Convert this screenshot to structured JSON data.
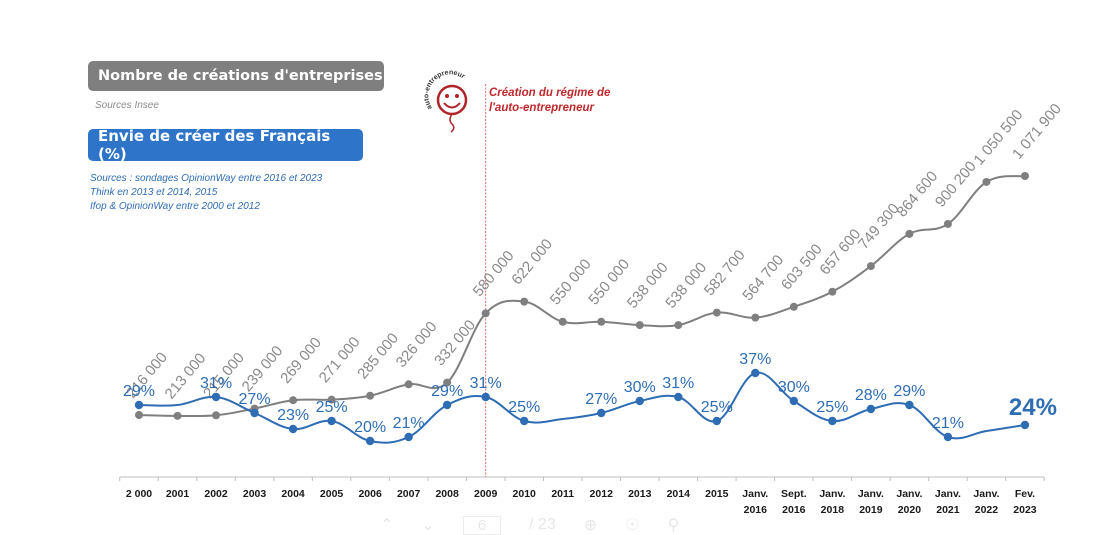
{
  "legend": {
    "series_creations_title": "Nombre de créations d'entreprises",
    "series_creations_source": "Sources Insee",
    "series_envie_title": "Envie de créer des Français (%)",
    "series_envie_sources": [
      "Sources : sondages OpinionWay entre 2016 et 2023",
      "Think en 2013 et 2014, 2015",
      "Ifop & OpinionWay entre 2000 et 2012"
    ]
  },
  "annotation": {
    "line1": "Création du régime de",
    "line2": "l'auto-entrepreneur",
    "logo_text": "auto-entrepreneur",
    "at_category": "2009",
    "color": "#c0282d"
  },
  "viewer": {
    "page_current": "6",
    "page_total": "/ 23"
  },
  "chart_data": {
    "type": "line",
    "categories": [
      [
        "2 000"
      ],
      [
        "2001"
      ],
      [
        "2002"
      ],
      [
        "2003"
      ],
      [
        "2004"
      ],
      [
        "2005"
      ],
      [
        "2006"
      ],
      [
        "2007"
      ],
      [
        "2008"
      ],
      [
        "2009"
      ],
      [
        "2010"
      ],
      [
        "2011"
      ],
      [
        "2012"
      ],
      [
        "2013"
      ],
      [
        "2014"
      ],
      [
        "2015"
      ],
      [
        "Janv.",
        "2016"
      ],
      [
        "Sept.",
        "2016"
      ],
      [
        "Janv.",
        "2018"
      ],
      [
        "Janv.",
        "2019"
      ],
      [
        "Janv.",
        "2020"
      ],
      [
        "Janv.",
        "2021"
      ],
      [
        "Janv.",
        "2022"
      ],
      [
        "Fev.",
        "2023"
      ]
    ],
    "series": [
      {
        "name": "Nombre de créations d'entreprises",
        "color": "#7f7f7f",
        "values": [
          216000,
          213000,
          215000,
          239000,
          269000,
          271000,
          285000,
          326000,
          332000,
          580000,
          622000,
          550000,
          550000,
          538000,
          538000,
          582700,
          564700,
          603500,
          657600,
          749300,
          864600,
          900200,
          1050500,
          1071900
        ],
        "labels": [
          "216 000",
          "213 000",
          "215 000",
          "239 000",
          "269 000",
          "271 000",
          "285 000",
          "326 000",
          "332 000",
          "580 000",
          "622 000",
          "550 000",
          "550 000",
          "538 000",
          "538 000",
          "582 700",
          "564 700",
          "603 500",
          "657 600",
          "749 300",
          "864 600",
          "900 200",
          "1 050 500",
          "1 071 900"
        ]
      },
      {
        "name": "Envie de créer des Français (%)",
        "color": "#2e6db4",
        "values": [
          29,
          29,
          31,
          27,
          23,
          25,
          20,
          21,
          29,
          31,
          25,
          25.5,
          27,
          30,
          31,
          25,
          37,
          30,
          25,
          28,
          29,
          21,
          22.5,
          24
        ],
        "markers": [
          true,
          false,
          true,
          true,
          true,
          true,
          true,
          true,
          true,
          true,
          true,
          false,
          true,
          true,
          true,
          true,
          true,
          true,
          true,
          true,
          true,
          true,
          false,
          true
        ],
        "labels": [
          "29%",
          "",
          "31%",
          "27%",
          "23%",
          "25%",
          "20%",
          "21%",
          "29%",
          "31%",
          "25%",
          "",
          "27%",
          "30%",
          "31%",
          "25%",
          "37%",
          "30%",
          "25%",
          "28%",
          "29%",
          "21%",
          "",
          "24%"
        ]
      }
    ],
    "title": "",
    "xlabel": "",
    "ylabel": "",
    "grid": false
  }
}
